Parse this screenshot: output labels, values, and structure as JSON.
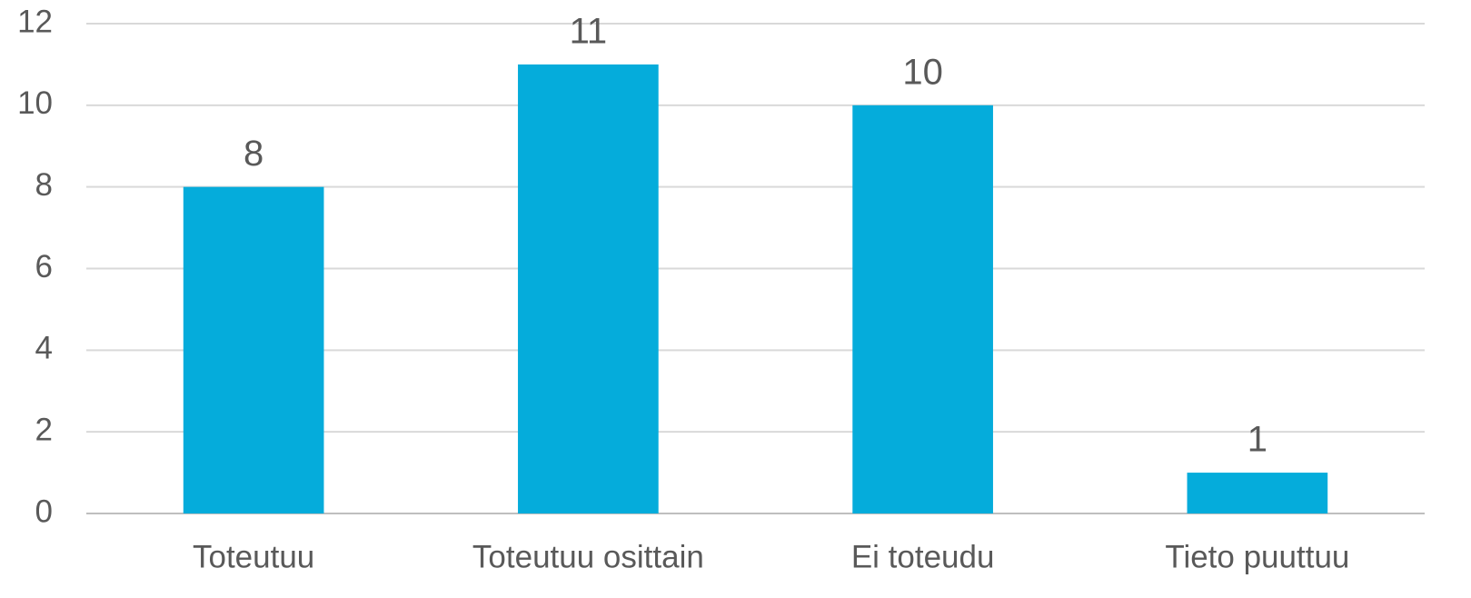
{
  "chart_data": {
    "type": "bar",
    "categories": [
      "Toteutuu",
      "Toteutuu osittain",
      "Ei toteudu",
      "Tieto puuttuu"
    ],
    "values": [
      8,
      11,
      10,
      1
    ],
    "color": "#05acdb",
    "ylim": [
      0,
      12
    ],
    "yticks": [
      0,
      2,
      4,
      6,
      8,
      10,
      12
    ],
    "grid": true
  }
}
